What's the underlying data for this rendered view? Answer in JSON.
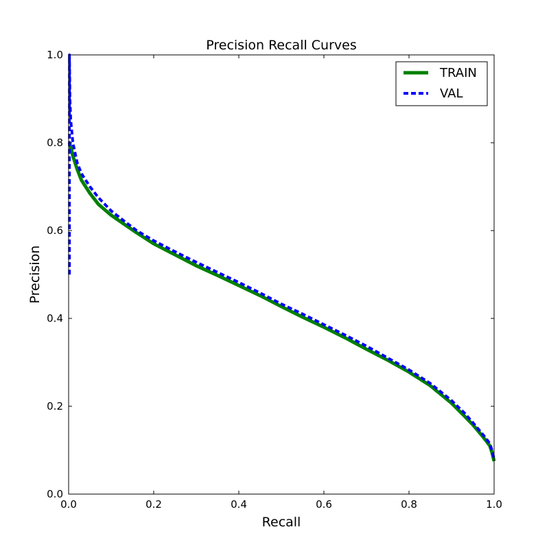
{
  "chart_data": {
    "type": "line",
    "title": "Precision Recall Curves",
    "xlabel": "Recall",
    "ylabel": "Precision",
    "xlim": [
      0.0,
      1.0
    ],
    "ylim": [
      0.0,
      1.0
    ],
    "xticks": [
      "0.0",
      "0.2",
      "0.4",
      "0.6",
      "0.8",
      "1.0"
    ],
    "yticks": [
      "0.0",
      "0.2",
      "0.4",
      "0.6",
      "0.8",
      "1.0"
    ],
    "grid": false,
    "legend_position": "top-right",
    "series": [
      {
        "name": "TRAIN",
        "color": "#008000",
        "style": "solid",
        "x": [
          0.0,
          0.002,
          0.005,
          0.01,
          0.02,
          0.03,
          0.05,
          0.07,
          0.1,
          0.13,
          0.16,
          0.2,
          0.25,
          0.3,
          0.35,
          0.4,
          0.45,
          0.5,
          0.55,
          0.6,
          0.65,
          0.7,
          0.75,
          0.8,
          0.85,
          0.9,
          0.93,
          0.95,
          0.97,
          0.98,
          0.99,
          0.995,
          1.0
        ],
        "y": [
          0.8,
          0.8,
          0.79,
          0.77,
          0.74,
          0.715,
          0.685,
          0.66,
          0.635,
          0.615,
          0.595,
          0.57,
          0.545,
          0.52,
          0.498,
          0.475,
          0.452,
          0.427,
          0.403,
          0.38,
          0.356,
          0.33,
          0.305,
          0.278,
          0.247,
          0.207,
          0.178,
          0.158,
          0.135,
          0.123,
          0.11,
          0.095,
          0.075
        ]
      },
      {
        "name": "VAL",
        "color": "#0000ff",
        "style": "dashed",
        "x": [
          0.002,
          0.002,
          0.003,
          0.005,
          0.008,
          0.01,
          0.02,
          0.03,
          0.05,
          0.07,
          0.1,
          0.13,
          0.16,
          0.2,
          0.25,
          0.3,
          0.35,
          0.4,
          0.45,
          0.5,
          0.55,
          0.6,
          0.65,
          0.7,
          0.75,
          0.8,
          0.85,
          0.9,
          0.93,
          0.95,
          0.97,
          0.98,
          0.99,
          0.995,
          1.0
        ],
        "y": [
          0.5,
          1.0,
          0.9,
          0.85,
          0.82,
          0.8,
          0.755,
          0.73,
          0.7,
          0.675,
          0.645,
          0.622,
          0.6,
          0.577,
          0.552,
          0.528,
          0.505,
          0.482,
          0.458,
          0.433,
          0.41,
          0.386,
          0.362,
          0.337,
          0.31,
          0.283,
          0.252,
          0.213,
          0.185,
          0.163,
          0.14,
          0.128,
          0.115,
          0.1,
          0.08
        ]
      }
    ]
  }
}
